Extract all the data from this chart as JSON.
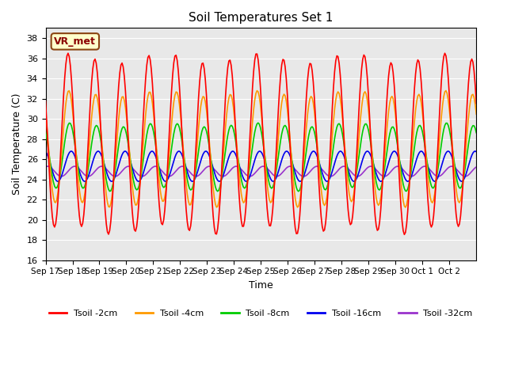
{
  "title": "Soil Temperatures Set 1",
  "xlabel": "Time",
  "ylabel": "Soil Temperature (C)",
  "ylim": [
    16,
    39
  ],
  "yticks": [
    16,
    18,
    20,
    22,
    24,
    26,
    28,
    30,
    32,
    34,
    36,
    38
  ],
  "annotation_text": "VR_met",
  "background_color": "#e8e8e8",
  "line_colors": {
    "2cm": "#ff0000",
    "4cm": "#ff9900",
    "8cm": "#00cc00",
    "16cm": "#0000ee",
    "32cm": "#9933cc"
  },
  "legend_labels": [
    "Tsoil -2cm",
    "Tsoil -4cm",
    "Tsoil -8cm",
    "Tsoil -16cm",
    "Tsoil -32cm"
  ],
  "x_tick_labels": [
    "Sep 17",
    "Sep 18",
    "Sep 19",
    "Sep 20",
    "Sep 21",
    "Sep 22",
    "Sep 23",
    "Sep 24",
    "Sep 25",
    "Sep 26",
    "Sep 27",
    "Sep 28",
    "Sep 29",
    "Sep 30",
    "Oct 1",
    "Oct 2"
  ],
  "days": 16,
  "amp_2": 8.5,
  "mean_2": 27.5,
  "phase_2": 0.0,
  "amp_4": 5.5,
  "mean_4": 27.0,
  "phase_4": 0.03,
  "amp_8": 3.2,
  "mean_8": 26.2,
  "phase_8": 0.06,
  "amp_16": 1.5,
  "mean_16": 25.3,
  "phase_16": 0.12,
  "amp_32": 0.5,
  "mean_32": 24.8,
  "phase_32": 0.25
}
